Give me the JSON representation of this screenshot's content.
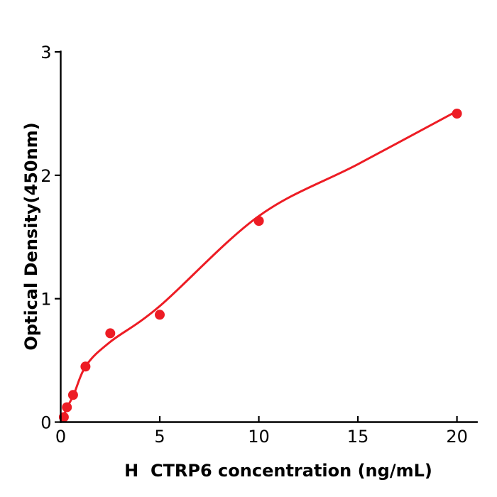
{
  "figure": {
    "background_color": "#ffffff",
    "axis_color": "#000000",
    "accent_color": "#ed1c24"
  },
  "chart_data": {
    "type": "scatter",
    "title": "",
    "xlabel": "H  CTRP6 concentration (ng/mL)",
    "ylabel": "Optical Density(450nm)",
    "xlim": [
      0,
      21.05
    ],
    "ylim": [
      0,
      3.01
    ],
    "xticks": [
      0,
      5,
      10,
      15,
      20
    ],
    "yticks": [
      0,
      1,
      2,
      3
    ],
    "grid": false,
    "legend": false,
    "series": [
      {
        "name": "standard-points",
        "type": "scatter",
        "color": "#ed1c24",
        "x": [
          0.156,
          0.313,
          0.625,
          1.25,
          2.5,
          5,
          10,
          20
        ],
        "y": [
          0.04,
          0.12,
          0.22,
          0.45,
          0.72,
          0.87,
          1.63,
          2.5
        ]
      },
      {
        "name": "fit-curve",
        "type": "line",
        "color": "#ed1c24",
        "x": [
          0,
          0.36,
          0.65,
          1.29,
          2.5,
          5,
          10,
          15,
          20
        ],
        "y": [
          0.0,
          0.13,
          0.22,
          0.46,
          0.65,
          0.94,
          1.67,
          2.09,
          2.52
        ]
      }
    ]
  }
}
